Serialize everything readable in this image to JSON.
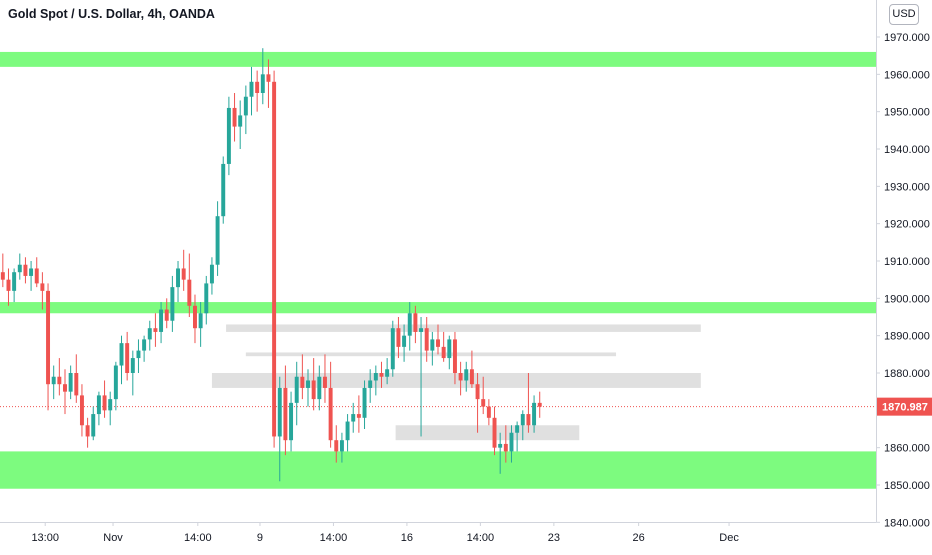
{
  "title": "Gold Spot / U.S. Dollar, 4h, OANDA",
  "currency": "USD",
  "colors": {
    "up": "#26a69a",
    "down": "#ef5350",
    "zone_green": "#7dfb7f",
    "zone_gray": "#e0e0e0",
    "price_line": "#ef5350",
    "axis_text": "#131722",
    "axis_line": "#d1d4dc"
  },
  "chart_data": {
    "type": "candlestick",
    "ylim": [
      1840,
      1973
    ],
    "y_ticks": [
      1840,
      1850,
      1860,
      1870,
      1880,
      1890,
      1900,
      1910,
      1920,
      1930,
      1940,
      1950,
      1960,
      1970
    ],
    "y_tick_labels": [
      "1840.000",
      "1850.000",
      "1860.000",
      "1870.000",
      "1880.000",
      "1890.000",
      "1900.000",
      "1910.000",
      "1920.000",
      "1930.000",
      "1940.000",
      "1950.000",
      "1960.000",
      "1970.000"
    ],
    "x_range": [
      0,
      155
    ],
    "x_ticks": [
      {
        "x": 8,
        "label": "13:00"
      },
      {
        "x": 20,
        "label": "Nov"
      },
      {
        "x": 35,
        "label": "14:00"
      },
      {
        "x": 46,
        "label": "9"
      },
      {
        "x": 59,
        "label": "14:00"
      },
      {
        "x": 72,
        "label": "16"
      },
      {
        "x": 85,
        "label": "14:00"
      },
      {
        "x": 98,
        "label": "23"
      },
      {
        "x": 113,
        "label": "26"
      },
      {
        "x": 129,
        "label": "Dec"
      }
    ],
    "current_price": 1870.987,
    "current_price_label": "1870.987",
    "zones": [
      {
        "type": "support-resistance",
        "color": "green",
        "x0": 0,
        "x1": 155,
        "y0": 1962,
        "y1": 1966
      },
      {
        "type": "support-resistance",
        "color": "green",
        "x0": 0,
        "x1": 155,
        "y0": 1896,
        "y1": 1899
      },
      {
        "type": "support-resistance",
        "color": "green",
        "x0": 0,
        "x1": 155,
        "y0": 1849,
        "y1": 1859
      },
      {
        "type": "level",
        "color": "gray",
        "x0": 40,
        "x1": 124,
        "y0": 1891,
        "y1": 1893
      },
      {
        "type": "level",
        "color": "gray",
        "x0": 43.5,
        "x1": 109,
        "y0": 1884.5,
        "y1": 1885.5
      },
      {
        "type": "level",
        "color": "gray",
        "x0": 37.5,
        "x1": 124,
        "y0": 1876,
        "y1": 1880
      },
      {
        "type": "level",
        "color": "gray",
        "x0": 70,
        "x1": 102.5,
        "y0": 1862,
        "y1": 1866
      }
    ],
    "candles": [
      [
        1907,
        1912,
        1903,
        1905
      ],
      [
        1905,
        1908,
        1898,
        1902
      ],
      [
        1902,
        1908,
        1899,
        1907
      ],
      [
        1907,
        1912,
        1905,
        1909
      ],
      [
        1909,
        1911,
        1904,
        1906
      ],
      [
        1906,
        1910,
        1902,
        1908
      ],
      [
        1908,
        1911,
        1903,
        1904
      ],
      [
        1904,
        1907,
        1897,
        1902
      ],
      [
        1902,
        1904,
        1870,
        1877
      ],
      [
        1877,
        1882,
        1873,
        1879
      ],
      [
        1879,
        1884,
        1874,
        1877
      ],
      [
        1877,
        1881,
        1869,
        1875
      ],
      [
        1875,
        1882,
        1873,
        1880
      ],
      [
        1880,
        1885,
        1872,
        1874
      ],
      [
        1874,
        1877,
        1863,
        1866
      ],
      [
        1866,
        1868,
        1860,
        1863
      ],
      [
        1863,
        1871,
        1862,
        1869
      ],
      [
        1869,
        1875,
        1866,
        1874
      ],
      [
        1874,
        1878,
        1868,
        1870
      ],
      [
        1870,
        1875,
        1866,
        1873
      ],
      [
        1873,
        1883,
        1870,
        1882
      ],
      [
        1882,
        1890,
        1877,
        1888
      ],
      [
        1888,
        1891,
        1878,
        1880
      ],
      [
        1880,
        1886,
        1874,
        1884
      ],
      [
        1884,
        1889,
        1880,
        1886
      ],
      [
        1886,
        1890,
        1883,
        1889
      ],
      [
        1889,
        1894,
        1886,
        1892
      ],
      [
        1892,
        1896,
        1887,
        1891
      ],
      [
        1891,
        1899,
        1888,
        1897
      ],
      [
        1897,
        1900,
        1892,
        1894
      ],
      [
        1894,
        1906,
        1891,
        1903
      ],
      [
        1903,
        1910,
        1899,
        1908
      ],
      [
        1908,
        1913,
        1902,
        1905
      ],
      [
        1905,
        1912,
        1895,
        1898
      ],
      [
        1898,
        1901,
        1888,
        1892
      ],
      [
        1892,
        1899,
        1887,
        1896
      ],
      [
        1896,
        1906,
        1893,
        1904
      ],
      [
        1904,
        1911,
        1901,
        1909
      ],
      [
        1909,
        1926,
        1906,
        1922
      ],
      [
        1922,
        1938,
        1920,
        1936
      ],
      [
        1936,
        1954,
        1933,
        1951
      ],
      [
        1951,
        1955,
        1942,
        1946
      ],
      [
        1946,
        1953,
        1940,
        1949
      ],
      [
        1949,
        1957,
        1944,
        1954
      ],
      [
        1954,
        1962,
        1949,
        1958
      ],
      [
        1958,
        1961,
        1950,
        1955
      ],
      [
        1955,
        1967,
        1952,
        1960
      ],
      [
        1960,
        1964,
        1951,
        1958
      ],
      [
        1958,
        1961,
        1860,
        1863
      ],
      [
        1863,
        1879,
        1851,
        1876
      ],
      [
        1876,
        1882,
        1858,
        1862
      ],
      [
        1862,
        1875,
        1859,
        1872
      ],
      [
        1872,
        1883,
        1866,
        1879
      ],
      [
        1879,
        1885,
        1873,
        1876
      ],
      [
        1876,
        1881,
        1871,
        1878
      ],
      [
        1878,
        1884,
        1870,
        1873
      ],
      [
        1873,
        1882,
        1870,
        1879
      ],
      [
        1879,
        1885,
        1872,
        1876
      ],
      [
        1876,
        1883,
        1860,
        1862
      ],
      [
        1862,
        1866,
        1856,
        1859
      ],
      [
        1859,
        1864,
        1856,
        1862
      ],
      [
        1862,
        1869,
        1859,
        1867
      ],
      [
        1867,
        1872,
        1864,
        1869
      ],
      [
        1869,
        1874,
        1864,
        1868
      ],
      [
        1868,
        1878,
        1865,
        1876
      ],
      [
        1876,
        1881,
        1872,
        1878
      ],
      [
        1878,
        1882,
        1874,
        1880
      ],
      [
        1880,
        1883,
        1876,
        1879
      ],
      [
        1879,
        1884,
        1877,
        1881
      ],
      [
        1881,
        1894,
        1879,
        1892
      ],
      [
        1892,
        1895,
        1884,
        1887
      ],
      [
        1887,
        1893,
        1883,
        1890
      ],
      [
        1890,
        1899,
        1886,
        1896
      ],
      [
        1896,
        1898,
        1888,
        1891
      ],
      [
        1891,
        1895,
        1863,
        1892
      ],
      [
        1892,
        1895,
        1883,
        1886
      ],
      [
        1886,
        1891,
        1882,
        1889
      ],
      [
        1889,
        1893,
        1885,
        1887
      ],
      [
        1887,
        1891,
        1883,
        1884
      ],
      [
        1884,
        1890,
        1881,
        1889
      ],
      [
        1889,
        1891,
        1877,
        1880
      ],
      [
        1880,
        1883,
        1874,
        1878
      ],
      [
        1878,
        1883,
        1875,
        1881
      ],
      [
        1881,
        1886,
        1876,
        1877
      ],
      [
        1877,
        1880,
        1864,
        1873
      ],
      [
        1873,
        1879,
        1869,
        1871
      ],
      [
        1871,
        1873,
        1866,
        1868
      ],
      [
        1868,
        1871,
        1858,
        1860
      ],
      [
        1860,
        1864,
        1853,
        1861
      ],
      [
        1861,
        1866,
        1856,
        1859
      ],
      [
        1859,
        1866,
        1856,
        1864
      ],
      [
        1864,
        1867,
        1859,
        1866
      ],
      [
        1866,
        1870,
        1862,
        1869
      ],
      [
        1869,
        1880,
        1864,
        1866
      ],
      [
        1866,
        1874,
        1864,
        1872
      ],
      [
        1872,
        1875,
        1868,
        1870.987
      ]
    ]
  }
}
